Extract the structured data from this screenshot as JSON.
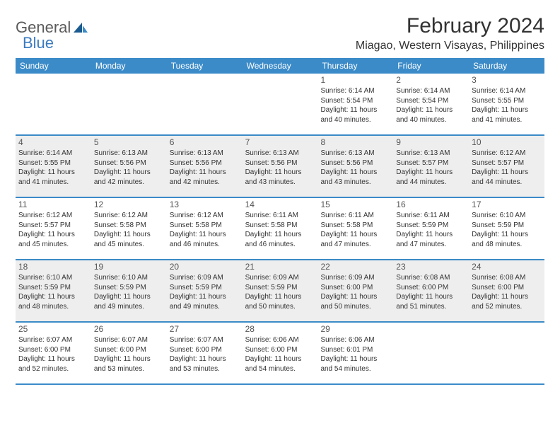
{
  "brand": {
    "text1": "General",
    "text2": "Blue"
  },
  "title": "February 2024",
  "location": "Miagao, Western Visayas, Philippines",
  "colors": {
    "header_bg": "#3b8bc8",
    "row_border": "#3b8bc8",
    "shaded_bg": "#eeeeee",
    "text": "#333333",
    "logo_gray": "#5a5a5a",
    "logo_blue": "#3b7bbf"
  },
  "weekdays": [
    "Sunday",
    "Monday",
    "Tuesday",
    "Wednesday",
    "Thursday",
    "Friday",
    "Saturday"
  ],
  "weeks": [
    {
      "shaded": false,
      "days": [
        {
          "n": "",
          "sunrise": "",
          "sunset": "",
          "daylight": ""
        },
        {
          "n": "",
          "sunrise": "",
          "sunset": "",
          "daylight": ""
        },
        {
          "n": "",
          "sunrise": "",
          "sunset": "",
          "daylight": ""
        },
        {
          "n": "",
          "sunrise": "",
          "sunset": "",
          "daylight": ""
        },
        {
          "n": "1",
          "sunrise": "6:14 AM",
          "sunset": "5:54 PM",
          "daylight": "11 hours and 40 minutes."
        },
        {
          "n": "2",
          "sunrise": "6:14 AM",
          "sunset": "5:54 PM",
          "daylight": "11 hours and 40 minutes."
        },
        {
          "n": "3",
          "sunrise": "6:14 AM",
          "sunset": "5:55 PM",
          "daylight": "11 hours and 41 minutes."
        }
      ]
    },
    {
      "shaded": true,
      "days": [
        {
          "n": "4",
          "sunrise": "6:14 AM",
          "sunset": "5:55 PM",
          "daylight": "11 hours and 41 minutes."
        },
        {
          "n": "5",
          "sunrise": "6:13 AM",
          "sunset": "5:56 PM",
          "daylight": "11 hours and 42 minutes."
        },
        {
          "n": "6",
          "sunrise": "6:13 AM",
          "sunset": "5:56 PM",
          "daylight": "11 hours and 42 minutes."
        },
        {
          "n": "7",
          "sunrise": "6:13 AM",
          "sunset": "5:56 PM",
          "daylight": "11 hours and 43 minutes."
        },
        {
          "n": "8",
          "sunrise": "6:13 AM",
          "sunset": "5:56 PM",
          "daylight": "11 hours and 43 minutes."
        },
        {
          "n": "9",
          "sunrise": "6:13 AM",
          "sunset": "5:57 PM",
          "daylight": "11 hours and 44 minutes."
        },
        {
          "n": "10",
          "sunrise": "6:12 AM",
          "sunset": "5:57 PM",
          "daylight": "11 hours and 44 minutes."
        }
      ]
    },
    {
      "shaded": false,
      "days": [
        {
          "n": "11",
          "sunrise": "6:12 AM",
          "sunset": "5:57 PM",
          "daylight": "11 hours and 45 minutes."
        },
        {
          "n": "12",
          "sunrise": "6:12 AM",
          "sunset": "5:58 PM",
          "daylight": "11 hours and 45 minutes."
        },
        {
          "n": "13",
          "sunrise": "6:12 AM",
          "sunset": "5:58 PM",
          "daylight": "11 hours and 46 minutes."
        },
        {
          "n": "14",
          "sunrise": "6:11 AM",
          "sunset": "5:58 PM",
          "daylight": "11 hours and 46 minutes."
        },
        {
          "n": "15",
          "sunrise": "6:11 AM",
          "sunset": "5:58 PM",
          "daylight": "11 hours and 47 minutes."
        },
        {
          "n": "16",
          "sunrise": "6:11 AM",
          "sunset": "5:59 PM",
          "daylight": "11 hours and 47 minutes."
        },
        {
          "n": "17",
          "sunrise": "6:10 AM",
          "sunset": "5:59 PM",
          "daylight": "11 hours and 48 minutes."
        }
      ]
    },
    {
      "shaded": true,
      "days": [
        {
          "n": "18",
          "sunrise": "6:10 AM",
          "sunset": "5:59 PM",
          "daylight": "11 hours and 48 minutes."
        },
        {
          "n": "19",
          "sunrise": "6:10 AM",
          "sunset": "5:59 PM",
          "daylight": "11 hours and 49 minutes."
        },
        {
          "n": "20",
          "sunrise": "6:09 AM",
          "sunset": "5:59 PM",
          "daylight": "11 hours and 49 minutes."
        },
        {
          "n": "21",
          "sunrise": "6:09 AM",
          "sunset": "5:59 PM",
          "daylight": "11 hours and 50 minutes."
        },
        {
          "n": "22",
          "sunrise": "6:09 AM",
          "sunset": "6:00 PM",
          "daylight": "11 hours and 50 minutes."
        },
        {
          "n": "23",
          "sunrise": "6:08 AM",
          "sunset": "6:00 PM",
          "daylight": "11 hours and 51 minutes."
        },
        {
          "n": "24",
          "sunrise": "6:08 AM",
          "sunset": "6:00 PM",
          "daylight": "11 hours and 52 minutes."
        }
      ]
    },
    {
      "shaded": false,
      "days": [
        {
          "n": "25",
          "sunrise": "6:07 AM",
          "sunset": "6:00 PM",
          "daylight": "11 hours and 52 minutes."
        },
        {
          "n": "26",
          "sunrise": "6:07 AM",
          "sunset": "6:00 PM",
          "daylight": "11 hours and 53 minutes."
        },
        {
          "n": "27",
          "sunrise": "6:07 AM",
          "sunset": "6:00 PM",
          "daylight": "11 hours and 53 minutes."
        },
        {
          "n": "28",
          "sunrise": "6:06 AM",
          "sunset": "6:00 PM",
          "daylight": "11 hours and 54 minutes."
        },
        {
          "n": "29",
          "sunrise": "6:06 AM",
          "sunset": "6:01 PM",
          "daylight": "11 hours and 54 minutes."
        },
        {
          "n": "",
          "sunrise": "",
          "sunset": "",
          "daylight": ""
        },
        {
          "n": "",
          "sunrise": "",
          "sunset": "",
          "daylight": ""
        }
      ]
    }
  ]
}
